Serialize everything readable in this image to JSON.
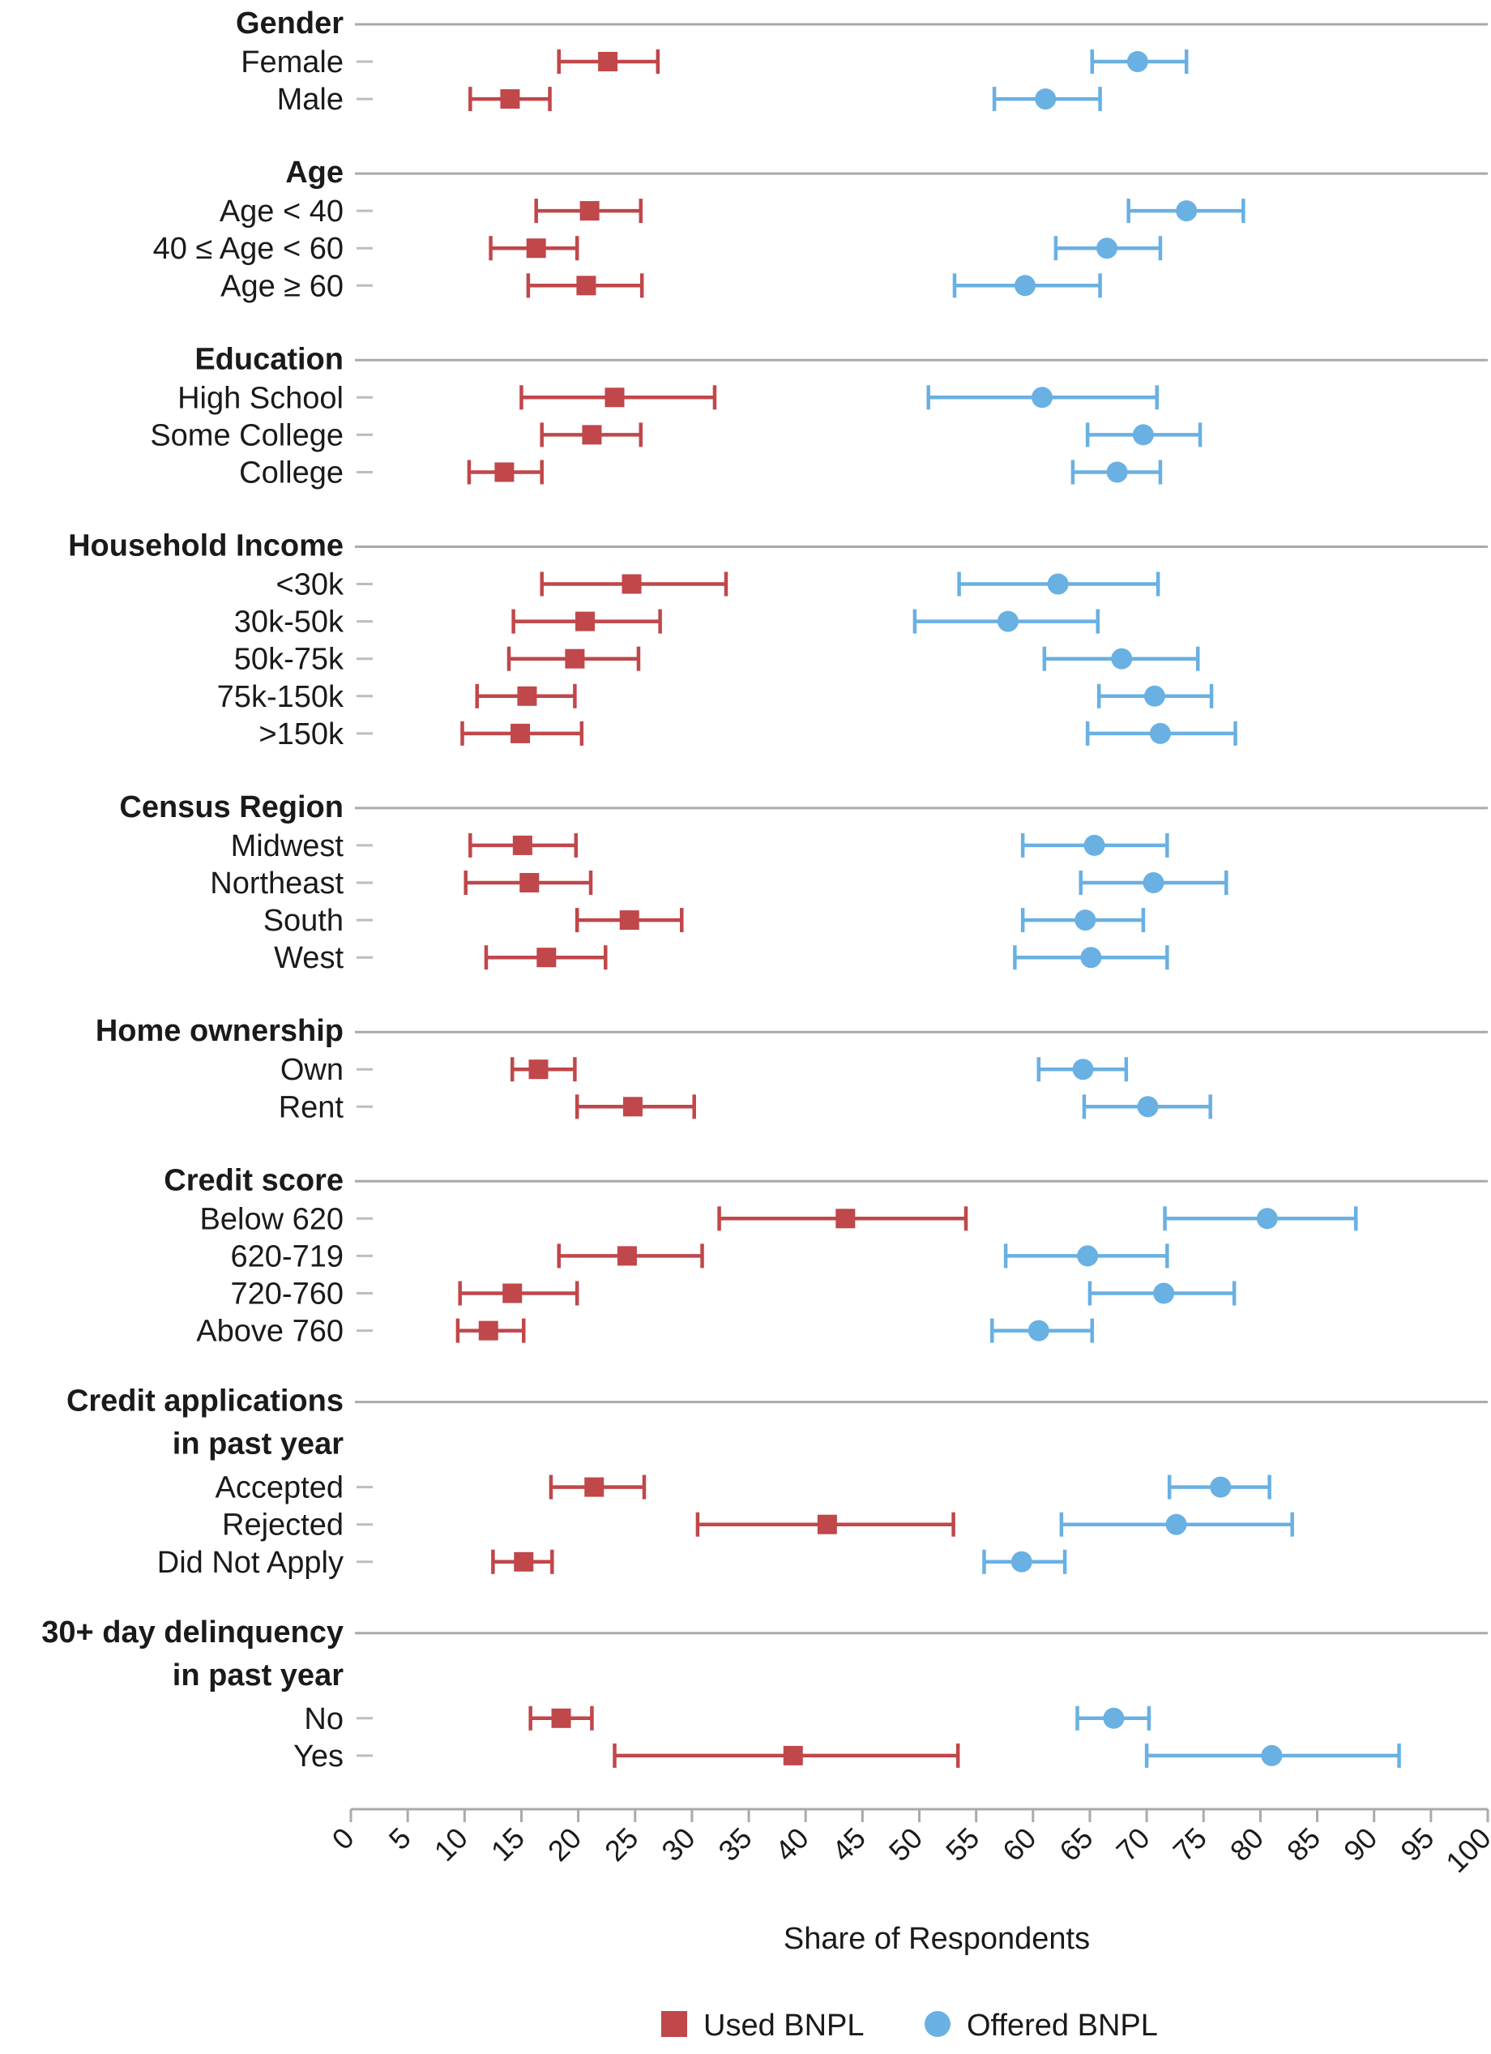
{
  "chart_data": {
    "type": "dot-errorbar",
    "xlabel": "Share of Respondents",
    "xlim": [
      0,
      100
    ],
    "xticks": [
      0,
      5,
      10,
      15,
      20,
      25,
      30,
      35,
      40,
      45,
      50,
      55,
      60,
      65,
      70,
      75,
      80,
      85,
      90,
      95,
      100
    ],
    "legend": {
      "placement": "bottom-center"
    },
    "series": [
      {
        "key": "used",
        "name": "Used BNPL",
        "color": "#c0474a",
        "marker": "square"
      },
      {
        "key": "offered",
        "name": "Offered BNPL",
        "color": "#69b0e3",
        "marker": "circle"
      }
    ],
    "groups": [
      {
        "title": [
          "Gender"
        ],
        "rows": [
          {
            "label": "Female",
            "used": [
              18.3,
              22.6,
              27.0
            ],
            "offered": [
              65.2,
              69.2,
              73.5
            ]
          },
          {
            "label": "Male",
            "used": [
              10.5,
              14.0,
              17.5
            ],
            "offered": [
              56.6,
              61.1,
              65.9
            ]
          }
        ]
      },
      {
        "title": [
          "Age"
        ],
        "rows": [
          {
            "label": "Age < 40",
            "used": [
              16.3,
              21.0,
              25.5
            ],
            "offered": [
              68.4,
              73.5,
              78.5
            ]
          },
          {
            "label": "40 ≤ Age < 60",
            "used": [
              12.3,
              16.3,
              19.9
            ],
            "offered": [
              62.0,
              66.5,
              71.2
            ]
          },
          {
            "label": "Age ≥ 60",
            "used": [
              15.6,
              20.7,
              25.6
            ],
            "offered": [
              53.1,
              59.3,
              65.9
            ]
          }
        ]
      },
      {
        "title": [
          "Education"
        ],
        "rows": [
          {
            "label": "High School",
            "used": [
              15.0,
              23.2,
              32.0
            ],
            "offered": [
              50.8,
              60.8,
              70.9
            ]
          },
          {
            "label": "Some College",
            "used": [
              16.8,
              21.2,
              25.5
            ],
            "offered": [
              64.8,
              69.7,
              74.7
            ]
          },
          {
            "label": "College",
            "used": [
              10.4,
              13.5,
              16.8
            ],
            "offered": [
              63.5,
              67.4,
              71.2
            ]
          }
        ]
      },
      {
        "title": [
          "Household Income"
        ],
        "rows": [
          {
            "label": "<30k",
            "used": [
              16.8,
              24.7,
              33.0
            ],
            "offered": [
              53.5,
              62.2,
              71.0
            ]
          },
          {
            "label": "30k-50k",
            "used": [
              14.3,
              20.6,
              27.2
            ],
            "offered": [
              49.6,
              57.8,
              65.7
            ]
          },
          {
            "label": "50k-75k",
            "used": [
              13.9,
              19.7,
              25.3
            ],
            "offered": [
              61.0,
              67.8,
              74.5
            ]
          },
          {
            "label": "75k-150k",
            "used": [
              11.1,
              15.5,
              19.7
            ],
            "offered": [
              65.8,
              70.7,
              75.7
            ]
          },
          {
            "label": ">150k",
            "used": [
              9.8,
              14.9,
              20.3
            ],
            "offered": [
              64.8,
              71.2,
              77.8
            ]
          }
        ]
      },
      {
        "title": [
          "Census Region"
        ],
        "rows": [
          {
            "label": "Midwest",
            "used": [
              10.5,
              15.1,
              19.8
            ],
            "offered": [
              59.1,
              65.4,
              71.8
            ]
          },
          {
            "label": "Northeast",
            "used": [
              10.1,
              15.7,
              21.1
            ],
            "offered": [
              64.2,
              70.6,
              77.0
            ]
          },
          {
            "label": "South",
            "used": [
              19.9,
              24.5,
              29.1
            ],
            "offered": [
              59.1,
              64.6,
              69.7
            ]
          },
          {
            "label": "West",
            "used": [
              11.9,
              17.2,
              22.4
            ],
            "offered": [
              58.4,
              65.1,
              71.8
            ]
          }
        ]
      },
      {
        "title": [
          "Home ownership"
        ],
        "rows": [
          {
            "label": "Own",
            "used": [
              14.2,
              16.5,
              19.7
            ],
            "offered": [
              60.5,
              64.4,
              68.2
            ]
          },
          {
            "label": "Rent",
            "used": [
              19.9,
              24.8,
              30.2
            ],
            "offered": [
              64.5,
              70.1,
              75.6
            ]
          }
        ]
      },
      {
        "title": [
          "Credit score"
        ],
        "rows": [
          {
            "label": "Below 620",
            "used": [
              32.4,
              43.5,
              54.1
            ],
            "offered": [
              71.6,
              80.6,
              88.4
            ]
          },
          {
            "label": "620-719",
            "used": [
              18.3,
              24.3,
              30.9
            ],
            "offered": [
              57.6,
              64.8,
              71.8
            ]
          },
          {
            "label": "720-760",
            "used": [
              9.6,
              14.2,
              19.9
            ],
            "offered": [
              65.0,
              71.5,
              77.7
            ]
          },
          {
            "label": "Above 760",
            "used": [
              9.4,
              12.1,
              15.2
            ],
            "offered": [
              56.4,
              60.5,
              65.2
            ]
          }
        ]
      },
      {
        "title": [
          "Credit applications",
          "in past year"
        ],
        "rows": [
          {
            "label": "Accepted",
            "used": [
              17.6,
              21.4,
              25.8
            ],
            "offered": [
              72.0,
              76.5,
              80.8
            ]
          },
          {
            "label": "Rejected",
            "used": [
              30.5,
              41.9,
              53.0
            ],
            "offered": [
              62.5,
              72.6,
              82.8
            ]
          },
          {
            "label": "Did Not Apply",
            "used": [
              12.5,
              15.2,
              17.7
            ],
            "offered": [
              55.7,
              59.0,
              62.8
            ]
          }
        ]
      },
      {
        "title": [
          "30+ day delinquency",
          "in past year"
        ],
        "rows": [
          {
            "label": "No",
            "used": [
              15.8,
              18.5,
              21.2
            ],
            "offered": [
              63.9,
              67.1,
              70.2
            ]
          },
          {
            "label": "Yes",
            "used": [
              23.2,
              38.9,
              53.4
            ],
            "offered": [
              70.0,
              81.0,
              92.2
            ]
          }
        ]
      }
    ]
  }
}
